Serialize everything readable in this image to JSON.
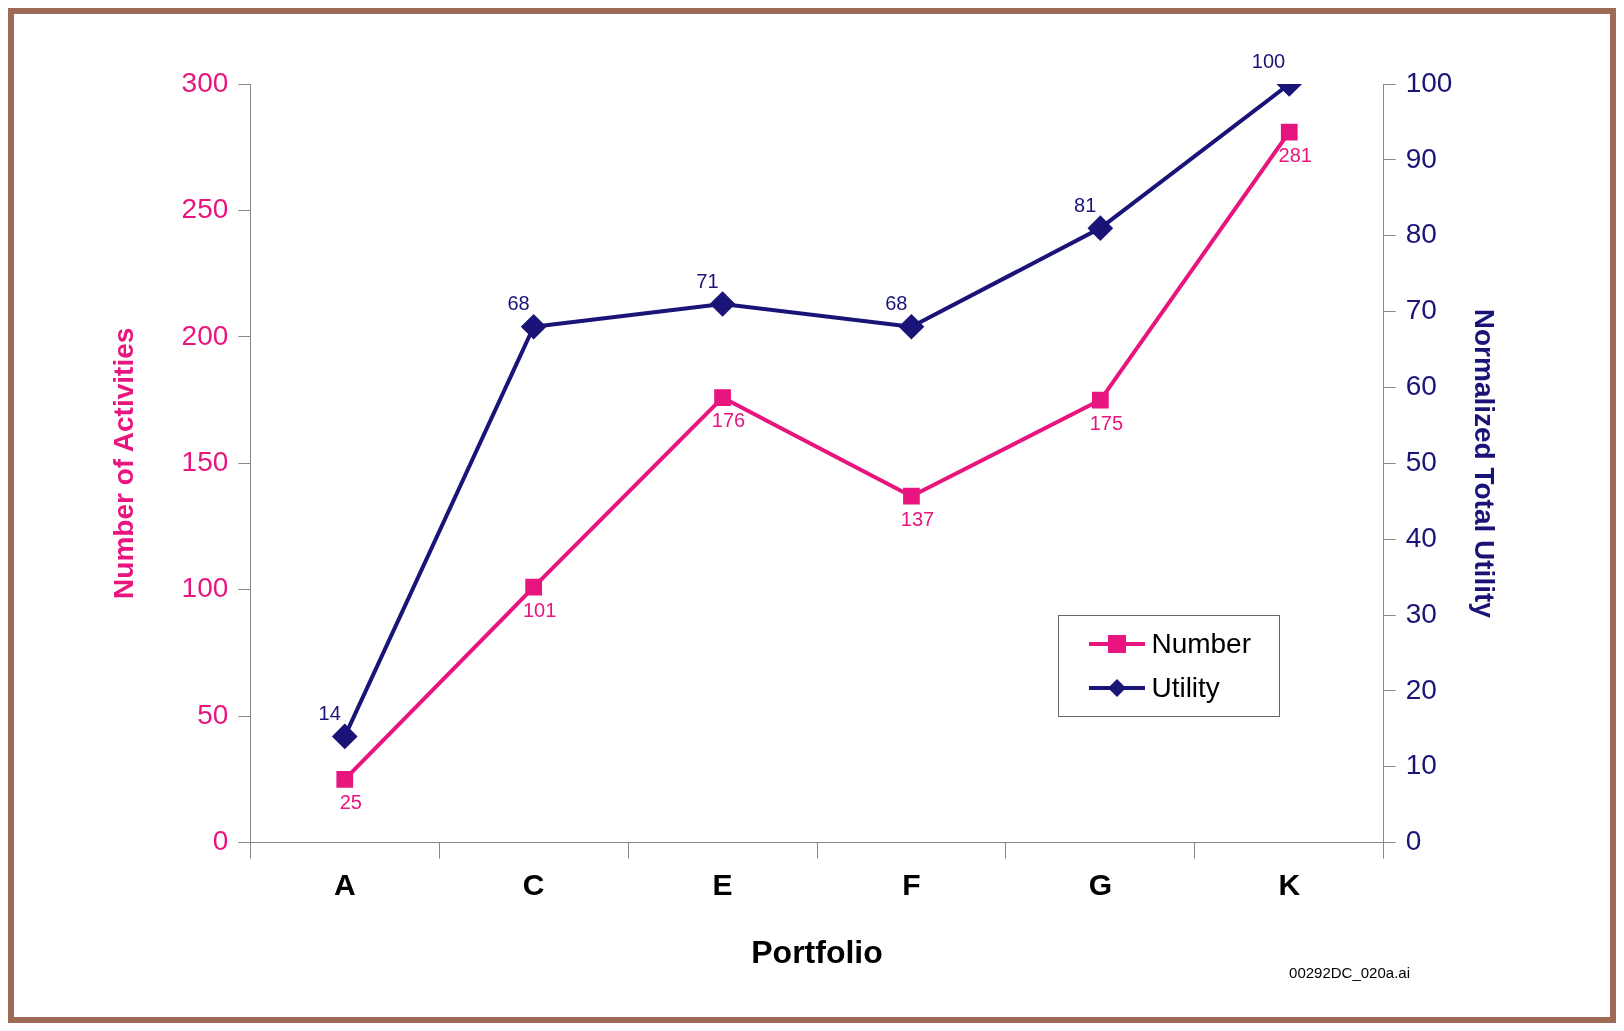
{
  "chart_data": {
    "type": "line",
    "xlabel": "Portfolio",
    "ylabel": "Number of Activities",
    "y2label": "Normalized Total Utility",
    "categories": [
      "A",
      "C",
      "E",
      "F",
      "G",
      "K"
    ],
    "series": [
      {
        "name": "Number",
        "color": "#e8157f",
        "marker": "square",
        "values": [
          25,
          101,
          176,
          137,
          175,
          281
        ]
      },
      {
        "name": "Utility",
        "color": "#1a1478",
        "marker": "diamond",
        "axis": "y2",
        "values": [
          14,
          68,
          71,
          68,
          81,
          100
        ]
      }
    ],
    "ylim": [
      0,
      300
    ],
    "yticks": [
      0,
      50,
      100,
      150,
      200,
      250,
      300
    ],
    "y2lim": [
      0,
      100
    ],
    "y2ticks": [
      0,
      10,
      20,
      30,
      40,
      50,
      60,
      70,
      80,
      90,
      100
    ],
    "data_labels": true,
    "legend": "bottom right",
    "grid": false,
    "annotations": [
      "00292DC_020a.ai"
    ]
  }
}
